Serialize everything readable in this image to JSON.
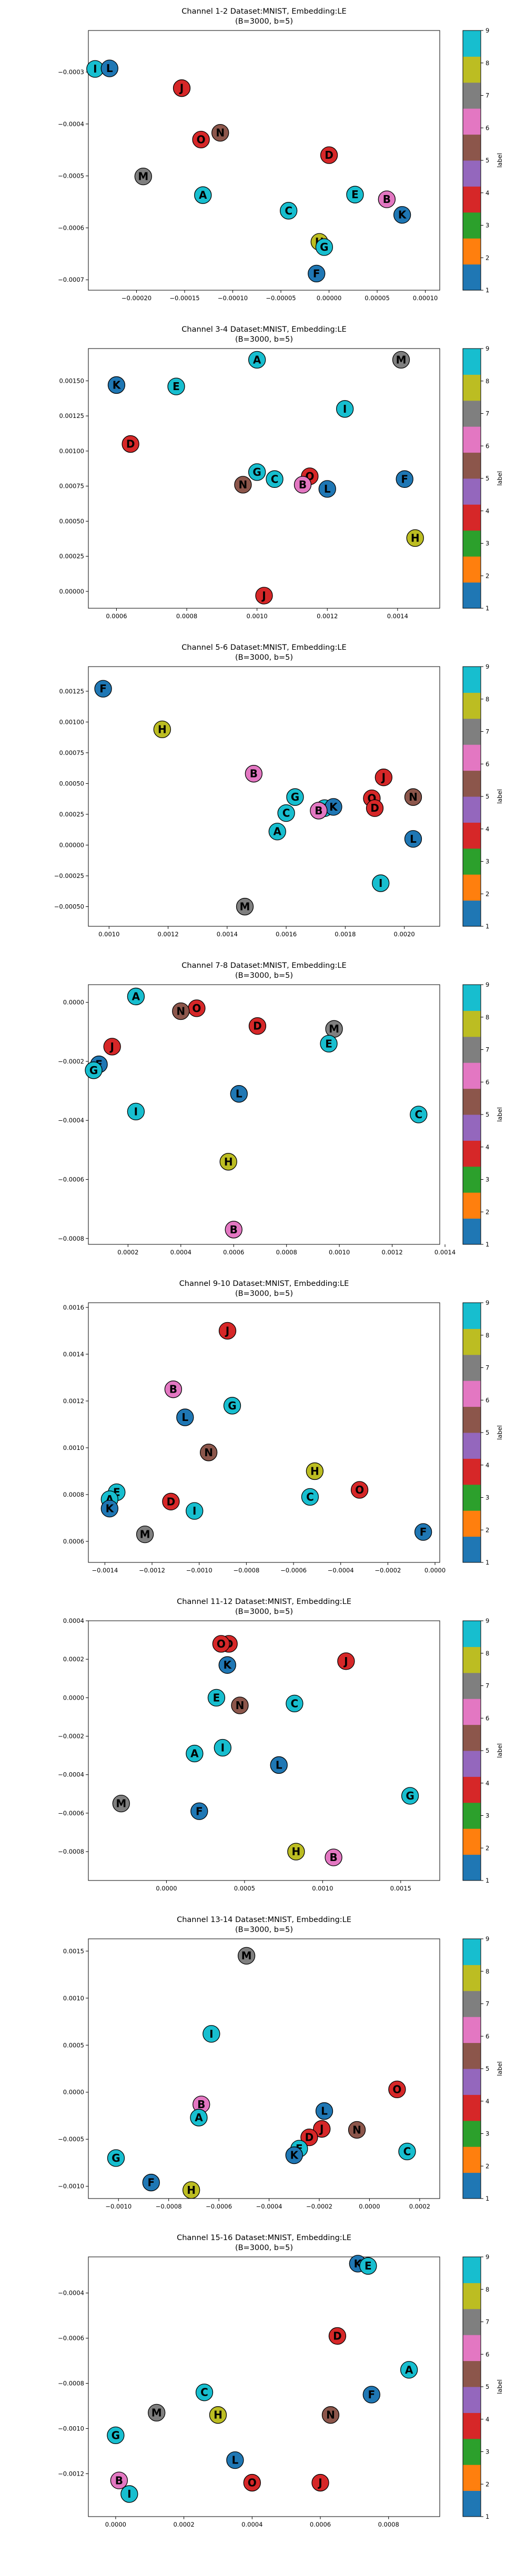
{
  "colorbar": {
    "label": "label",
    "ticks": [
      "1",
      "2",
      "3",
      "4",
      "5",
      "6",
      "7",
      "8",
      "9"
    ],
    "colors": [
      "#1f77b4",
      "#ff7f0e",
      "#2ca02c",
      "#d62728",
      "#9467bd",
      "#8c564b",
      "#e377c2",
      "#7f7f7f",
      "#bcbd22",
      "#17becf"
    ]
  },
  "classes": {
    "B": "#e377c2",
    "C": "#17becf",
    "D": "#d62728",
    "E": "#17becf",
    "F": "#1f77b4",
    "G": "#17becf",
    "H": "#bcbd22",
    "I": "#17becf",
    "J": "#d62728",
    "K": "#1f77b4",
    "L": "#1f77b4",
    "M": "#7f7f7f",
    "N": "#8c564b",
    "O": "#d62728",
    "A": "#17becf"
  },
  "chart_data": [
    {
      "type": "scatter",
      "title": "Channel 1-2 Dataset:MNIST, Embedding:LE",
      "subtitle": "(B=3000, b=5)",
      "xlim": [
        -0.00025,
        0.000115
      ],
      "ylim": [
        -0.00072,
        -0.00022
      ],
      "xticks": [
        -0.0002,
        -0.00015,
        -0.0001,
        -5e-05,
        0.0,
        5e-05,
        0.0001
      ],
      "xtick_labels": [
        "−0.00020",
        "−0.00015",
        "−0.00010",
        "−0.00005",
        "0.00000",
        "0.00005",
        "0.00010"
      ],
      "yticks": [
        -0.0003,
        -0.0004,
        -0.0005,
        -0.0006,
        -0.0007
      ],
      "ytick_labels": [
        "−0.0003",
        "−0.0004",
        "−0.0005",
        "−0.0006",
        "−0.0007"
      ],
      "points": [
        {
          "label": "I",
          "x": -0.000243,
          "y": -0.000294
        },
        {
          "label": "L",
          "x": -0.000228,
          "y": -0.000293
        },
        {
          "label": "J",
          "x": -0.000153,
          "y": -0.000331
        },
        {
          "label": "N",
          "x": -0.000113,
          "y": -0.000417
        },
        {
          "label": "O",
          "x": -0.000133,
          "y": -0.00043
        },
        {
          "label": "D",
          "x": 0.0,
          "y": -0.00046
        },
        {
          "label": "M",
          "x": -0.000193,
          "y": -0.000501
        },
        {
          "label": "A",
          "x": -0.000131,
          "y": -0.000537
        },
        {
          "label": "E",
          "x": 2.7e-05,
          "y": -0.000536
        },
        {
          "label": "B",
          "x": 6e-05,
          "y": -0.000545
        },
        {
          "label": "C",
          "x": -4.2e-05,
          "y": -0.000567
        },
        {
          "label": "K",
          "x": 7.6e-05,
          "y": -0.000575
        },
        {
          "label": "H",
          "x": -1e-05,
          "y": -0.000627
        },
        {
          "label": "G",
          "x": -5e-06,
          "y": -0.000637
        },
        {
          "label": "F",
          "x": -1.3e-05,
          "y": -0.000688
        }
      ]
    },
    {
      "type": "scatter",
      "title": "Channel 3-4 Dataset:MNIST, Embedding:LE",
      "subtitle": "(B=3000, b=5)",
      "xlim": [
        0.00052,
        0.00152
      ],
      "ylim": [
        -0.00012,
        0.00173
      ],
      "xticks": [
        0.0006,
        0.0008,
        0.001,
        0.0012,
        0.0014
      ],
      "xtick_labels": [
        "0.0006",
        "0.0008",
        "0.0010",
        "0.0012",
        "0.0014"
      ],
      "yticks": [
        0.0,
        0.00025,
        0.0005,
        0.00075,
        0.001,
        0.00125,
        0.0015
      ],
      "ytick_labels": [
        "0.00000",
        "0.00025",
        "0.00050",
        "0.00075",
        "0.00100",
        "0.00125",
        "0.00150"
      ],
      "points": [
        {
          "label": "A",
          "x": 0.001,
          "y": 0.00165
        },
        {
          "label": "M",
          "x": 0.00141,
          "y": 0.00165
        },
        {
          "label": "K",
          "x": 0.0006,
          "y": 0.00147
        },
        {
          "label": "E",
          "x": 0.00077,
          "y": 0.00146
        },
        {
          "label": "I",
          "x": 0.00125,
          "y": 0.0013
        },
        {
          "label": "D",
          "x": 0.00064,
          "y": 0.00105
        },
        {
          "label": "G",
          "x": 0.001,
          "y": 0.00085
        },
        {
          "label": "C",
          "x": 0.00105,
          "y": 0.0008
        },
        {
          "label": "O",
          "x": 0.00115,
          "y": 0.00082
        },
        {
          "label": "B",
          "x": 0.00113,
          "y": 0.00076
        },
        {
          "label": "N",
          "x": 0.00096,
          "y": 0.00076
        },
        {
          "label": "L",
          "x": 0.0012,
          "y": 0.00073
        },
        {
          "label": "F",
          "x": 0.00142,
          "y": 0.0008
        },
        {
          "label": "H",
          "x": 0.00145,
          "y": 0.00038
        },
        {
          "label": "J",
          "x": 0.00102,
          "y": -3e-05
        }
      ]
    },
    {
      "type": "scatter",
      "title": "Channel 5-6 Dataset:MNIST, Embedding:LE",
      "subtitle": "(B=3000, b=5)",
      "xlim": [
        0.00093,
        0.00212
      ],
      "ylim": [
        -0.00066,
        0.00145
      ],
      "xticks": [
        0.001,
        0.0012,
        0.0014,
        0.0016,
        0.0018,
        0.002
      ],
      "xtick_labels": [
        "0.0010",
        "0.0012",
        "0.0014",
        "0.0016",
        "0.0018",
        "0.0020"
      ],
      "yticks": [
        -0.0005,
        -0.00025,
        0.0,
        0.00025,
        0.0005,
        0.00075,
        0.001,
        0.00125
      ],
      "ytick_labels": [
        "−0.00050",
        "−0.00025",
        "0.00000",
        "0.00025",
        "0.00050",
        "0.00075",
        "0.00100",
        "0.00125"
      ],
      "points": [
        {
          "label": "F",
          "x": 0.00098,
          "y": 0.00127
        },
        {
          "label": "H",
          "x": 0.00118,
          "y": 0.00094
        },
        {
          "label": "B",
          "x": 0.00149,
          "y": 0.00058
        },
        {
          "label": "J",
          "x": 0.00193,
          "y": 0.00055
        },
        {
          "label": "G",
          "x": 0.00163,
          "y": 0.00039
        },
        {
          "label": "O",
          "x": 0.00189,
          "y": 0.00038
        },
        {
          "label": "N",
          "x": 0.00203,
          "y": 0.00039
        },
        {
          "label": "E",
          "x": 0.00173,
          "y": 0.0003
        },
        {
          "label": "K",
          "x": 0.00176,
          "y": 0.00031
        },
        {
          "label": "B2",
          "x": 0.00171,
          "y": 0.00028
        },
        {
          "label": "D",
          "x": 0.0019,
          "y": 0.0003
        },
        {
          "label": "C",
          "x": 0.0016,
          "y": 0.00026
        },
        {
          "label": "A",
          "x": 0.00157,
          "y": 0.00011
        },
        {
          "label": "L",
          "x": 0.00203,
          "y": 5e-05
        },
        {
          "label": "I",
          "x": 0.00192,
          "y": -0.00031
        },
        {
          "label": "M",
          "x": 0.00146,
          "y": -0.0005
        }
      ]
    },
    {
      "type": "scatter",
      "title": "Channel 7-8 Dataset:MNIST, Embedding:LE",
      "subtitle": "(B=3000, b=5)",
      "xlim": [
        5e-05,
        0.00138
      ],
      "ylim": [
        -0.00082,
        6e-05
      ],
      "xticks": [
        0.0002,
        0.0004,
        0.0006,
        0.0008,
        0.001,
        0.0012,
        0.0014
      ],
      "xtick_labels": [
        "0.0002",
        "0.0004",
        "0.0006",
        "0.0008",
        "0.0010",
        "0.0012",
        "0.0014"
      ],
      "yticks": [
        0.0,
        -0.0002,
        -0.0004,
        -0.0006,
        -0.0008
      ],
      "ytick_labels": [
        "0.0000",
        "−0.0002",
        "−0.0004",
        "−0.0006",
        "−0.0008"
      ],
      "points": [
        {
          "label": "A",
          "x": 0.00023,
          "y": 2e-05
        },
        {
          "label": "O",
          "x": 0.00046,
          "y": -2e-05
        },
        {
          "label": "N",
          "x": 0.0004,
          "y": -3e-05
        },
        {
          "label": "D",
          "x": 0.00069,
          "y": -8e-05
        },
        {
          "label": "M",
          "x": 0.00098,
          "y": -9e-05
        },
        {
          "label": "E",
          "x": 0.00096,
          "y": -0.00014
        },
        {
          "label": "J",
          "x": 0.00014,
          "y": -0.00015
        },
        {
          "label": "F",
          "x": 9e-05,
          "y": -0.00021
        },
        {
          "label": "G",
          "x": 7e-05,
          "y": -0.00023
        },
        {
          "label": "I",
          "x": 0.00023,
          "y": -0.00037
        },
        {
          "label": "L",
          "x": 0.00062,
          "y": -0.00031
        },
        {
          "label": "C",
          "x": 0.0013,
          "y": -0.00038
        },
        {
          "label": "H",
          "x": 0.00058,
          "y": -0.00054
        },
        {
          "label": "B",
          "x": 0.0006,
          "y": -0.00077
        }
      ]
    },
    {
      "type": "scatter",
      "title": "Channel 9-10 Dataset:MNIST, Embedding:LE",
      "subtitle": "(B=3000, b=5)",
      "xlim": [
        -0.00147,
        2e-05
      ],
      "ylim": [
        0.00051,
        0.00162
      ],
      "xticks": [
        -0.0014,
        -0.0012,
        -0.001,
        -0.0008,
        -0.0006,
        -0.0004,
        -0.0002,
        0.0
      ],
      "xtick_labels": [
        "−0.0014",
        "−0.0012",
        "−0.0010",
        "−0.0008",
        "−0.0006",
        "−0.0004",
        "−0.0002",
        "0.0000"
      ],
      "yticks": [
        0.0006,
        0.0008,
        0.001,
        0.0012,
        0.0014,
        0.0016
      ],
      "ytick_labels": [
        "0.0006",
        "0.0008",
        "0.0010",
        "0.0012",
        "0.0014",
        "0.0016"
      ],
      "points": [
        {
          "label": "J",
          "x": -0.00088,
          "y": 0.0015
        },
        {
          "label": "B",
          "x": -0.00111,
          "y": 0.00125
        },
        {
          "label": "G",
          "x": -0.00086,
          "y": 0.00118
        },
        {
          "label": "L",
          "x": -0.00106,
          "y": 0.00113
        },
        {
          "label": "N",
          "x": -0.00096,
          "y": 0.00098
        },
        {
          "label": "H",
          "x": -0.00051,
          "y": 0.0009
        },
        {
          "label": "O",
          "x": -0.00032,
          "y": 0.00082
        },
        {
          "label": "E",
          "x": -0.00135,
          "y": 0.00081
        },
        {
          "label": "C",
          "x": -0.00053,
          "y": 0.00079
        },
        {
          "label": "A",
          "x": -0.00138,
          "y": 0.00078
        },
        {
          "label": "D",
          "x": -0.00112,
          "y": 0.00077
        },
        {
          "label": "K",
          "x": -0.00138,
          "y": 0.00074
        },
        {
          "label": "I",
          "x": -0.00102,
          "y": 0.00073
        },
        {
          "label": "M",
          "x": -0.00123,
          "y": 0.00063
        },
        {
          "label": "F",
          "x": -5e-05,
          "y": 0.00064
        }
      ]
    },
    {
      "type": "scatter",
      "title": "Channel 11-12 Dataset:MNIST, Embedding:LE",
      "subtitle": "(B=3000, b=5)",
      "xlim": [
        -0.0005,
        0.00175
      ],
      "ylim": [
        -0.00095,
        0.0004
      ],
      "xticks": [
        0.0,
        0.0005,
        0.001,
        0.0015
      ],
      "xtick_labels": [
        "0.0000",
        "0.0005",
        "0.0010",
        "0.0015"
      ],
      "yticks": [
        0.0004,
        0.0002,
        0.0,
        -0.0002,
        -0.0004,
        -0.0006,
        -0.0008
      ],
      "ytick_labels": [
        "0.0004",
        "0.0002",
        "0.0000",
        "−0.0002",
        "−0.0004",
        "−0.0006",
        "−0.0008"
      ],
      "points": [
        {
          "label": "D",
          "x": 0.0004,
          "y": 0.00028
        },
        {
          "label": "O",
          "x": 0.00035,
          "y": 0.00028
        },
        {
          "label": "J",
          "x": 0.00115,
          "y": 0.00019
        },
        {
          "label": "K",
          "x": 0.00039,
          "y": 0.00017
        },
        {
          "label": "E",
          "x": 0.00032,
          "y": 0.0
        },
        {
          "label": "N",
          "x": 0.00047,
          "y": -4e-05
        },
        {
          "label": "C",
          "x": 0.00082,
          "y": -3e-05
        },
        {
          "label": "I",
          "x": 0.00036,
          "y": -0.00026
        },
        {
          "label": "A",
          "x": 0.00018,
          "y": -0.00029
        },
        {
          "label": "L",
          "x": 0.00072,
          "y": -0.00035
        },
        {
          "label": "G",
          "x": 0.00156,
          "y": -0.00051
        },
        {
          "label": "M",
          "x": -0.00029,
          "y": -0.00055
        },
        {
          "label": "F",
          "x": 0.00021,
          "y": -0.00059
        },
        {
          "label": "H",
          "x": 0.00083,
          "y": -0.0008
        },
        {
          "label": "B",
          "x": 0.00107,
          "y": -0.00083
        }
      ]
    },
    {
      "type": "scatter",
      "title": "Channel 13-14 Dataset:MNIST, Embedding:LE",
      "subtitle": "(B=3000, b=5)",
      "xlim": [
        -0.00112,
        0.00028
      ],
      "ylim": [
        -0.00113,
        0.00163
      ],
      "xticks": [
        -0.001,
        -0.0008,
        -0.0006,
        -0.0004,
        -0.0002,
        0.0,
        0.0002
      ],
      "xtick_labels": [
        "−0.0010",
        "−0.0008",
        "−0.0006",
        "−0.0004",
        "−0.0002",
        "0.0000",
        "0.0002"
      ],
      "yticks": [
        0.0015,
        0.001,
        0.0005,
        0.0,
        -0.0005,
        -0.001
      ],
      "ytick_labels": [
        "0.0015",
        "0.0010",
        "0.0005",
        "0.0000",
        "−0.0005",
        "−0.0010"
      ],
      "points": [
        {
          "label": "M",
          "x": -0.00049,
          "y": 0.00145
        },
        {
          "label": "I",
          "x": -0.00063,
          "y": 0.00062
        },
        {
          "label": "O",
          "x": 0.00011,
          "y": 3e-05
        },
        {
          "label": "B",
          "x": -0.00067,
          "y": -0.00013
        },
        {
          "label": "L",
          "x": -0.00018,
          "y": -0.0002
        },
        {
          "label": "A",
          "x": -0.00068,
          "y": -0.00027
        },
        {
          "label": "N",
          "x": -5e-05,
          "y": -0.0004
        },
        {
          "label": "J",
          "x": -0.00019,
          "y": -0.00039
        },
        {
          "label": "D",
          "x": -0.00024,
          "y": -0.00048
        },
        {
          "label": "E",
          "x": -0.00028,
          "y": -0.0006
        },
        {
          "label": "K",
          "x": -0.0003,
          "y": -0.00067
        },
        {
          "label": "C",
          "x": 0.00015,
          "y": -0.00063
        },
        {
          "label": "G",
          "x": -0.00101,
          "y": -0.0007
        },
        {
          "label": "F",
          "x": -0.00087,
          "y": -0.00096
        },
        {
          "label": "H",
          "x": -0.00071,
          "y": -0.00104
        }
      ]
    },
    {
      "type": "scatter",
      "title": "Channel 15-16 Dataset:MNIST, Embedding:LE",
      "subtitle": "(B=3000, b=5)",
      "xlim": [
        -8e-05,
        0.00095
      ],
      "ylim": [
        -0.00139,
        -0.00024
      ],
      "xticks": [
        0.0,
        0.0002,
        0.0004,
        0.0006,
        0.0008
      ],
      "xtick_labels": [
        "0.0000",
        "0.0002",
        "0.0004",
        "0.0006",
        "0.0008"
      ],
      "yticks": [
        -0.0004,
        -0.0006,
        -0.0008,
        -0.001,
        -0.0012
      ],
      "ytick_labels": [
        "−0.0004",
        "−0.0006",
        "−0.0008",
        "−0.0010",
        "−0.0012"
      ],
      "points": [
        {
          "label": "K",
          "x": 0.00071,
          "y": -0.00027
        },
        {
          "label": "E",
          "x": 0.00074,
          "y": -0.00028
        },
        {
          "label": "D",
          "x": 0.00065,
          "y": -0.00059
        },
        {
          "label": "A",
          "x": 0.00086,
          "y": -0.00074
        },
        {
          "label": "C",
          "x": 0.00026,
          "y": -0.00084
        },
        {
          "label": "F",
          "x": 0.00075,
          "y": -0.00085
        },
        {
          "label": "M",
          "x": 0.00012,
          "y": -0.00093
        },
        {
          "label": "H",
          "x": 0.0003,
          "y": -0.00094
        },
        {
          "label": "N",
          "x": 0.00063,
          "y": -0.00094
        },
        {
          "label": "G",
          "x": 0.0,
          "y": -0.00103
        },
        {
          "label": "L",
          "x": 0.00035,
          "y": -0.00114
        },
        {
          "label": "B",
          "x": 1e-05,
          "y": -0.00123
        },
        {
          "label": "I",
          "x": 4e-05,
          "y": -0.00129
        },
        {
          "label": "O",
          "x": 0.0004,
          "y": -0.00124
        },
        {
          "label": "J",
          "x": 0.0006,
          "y": -0.00124
        }
      ]
    }
  ]
}
